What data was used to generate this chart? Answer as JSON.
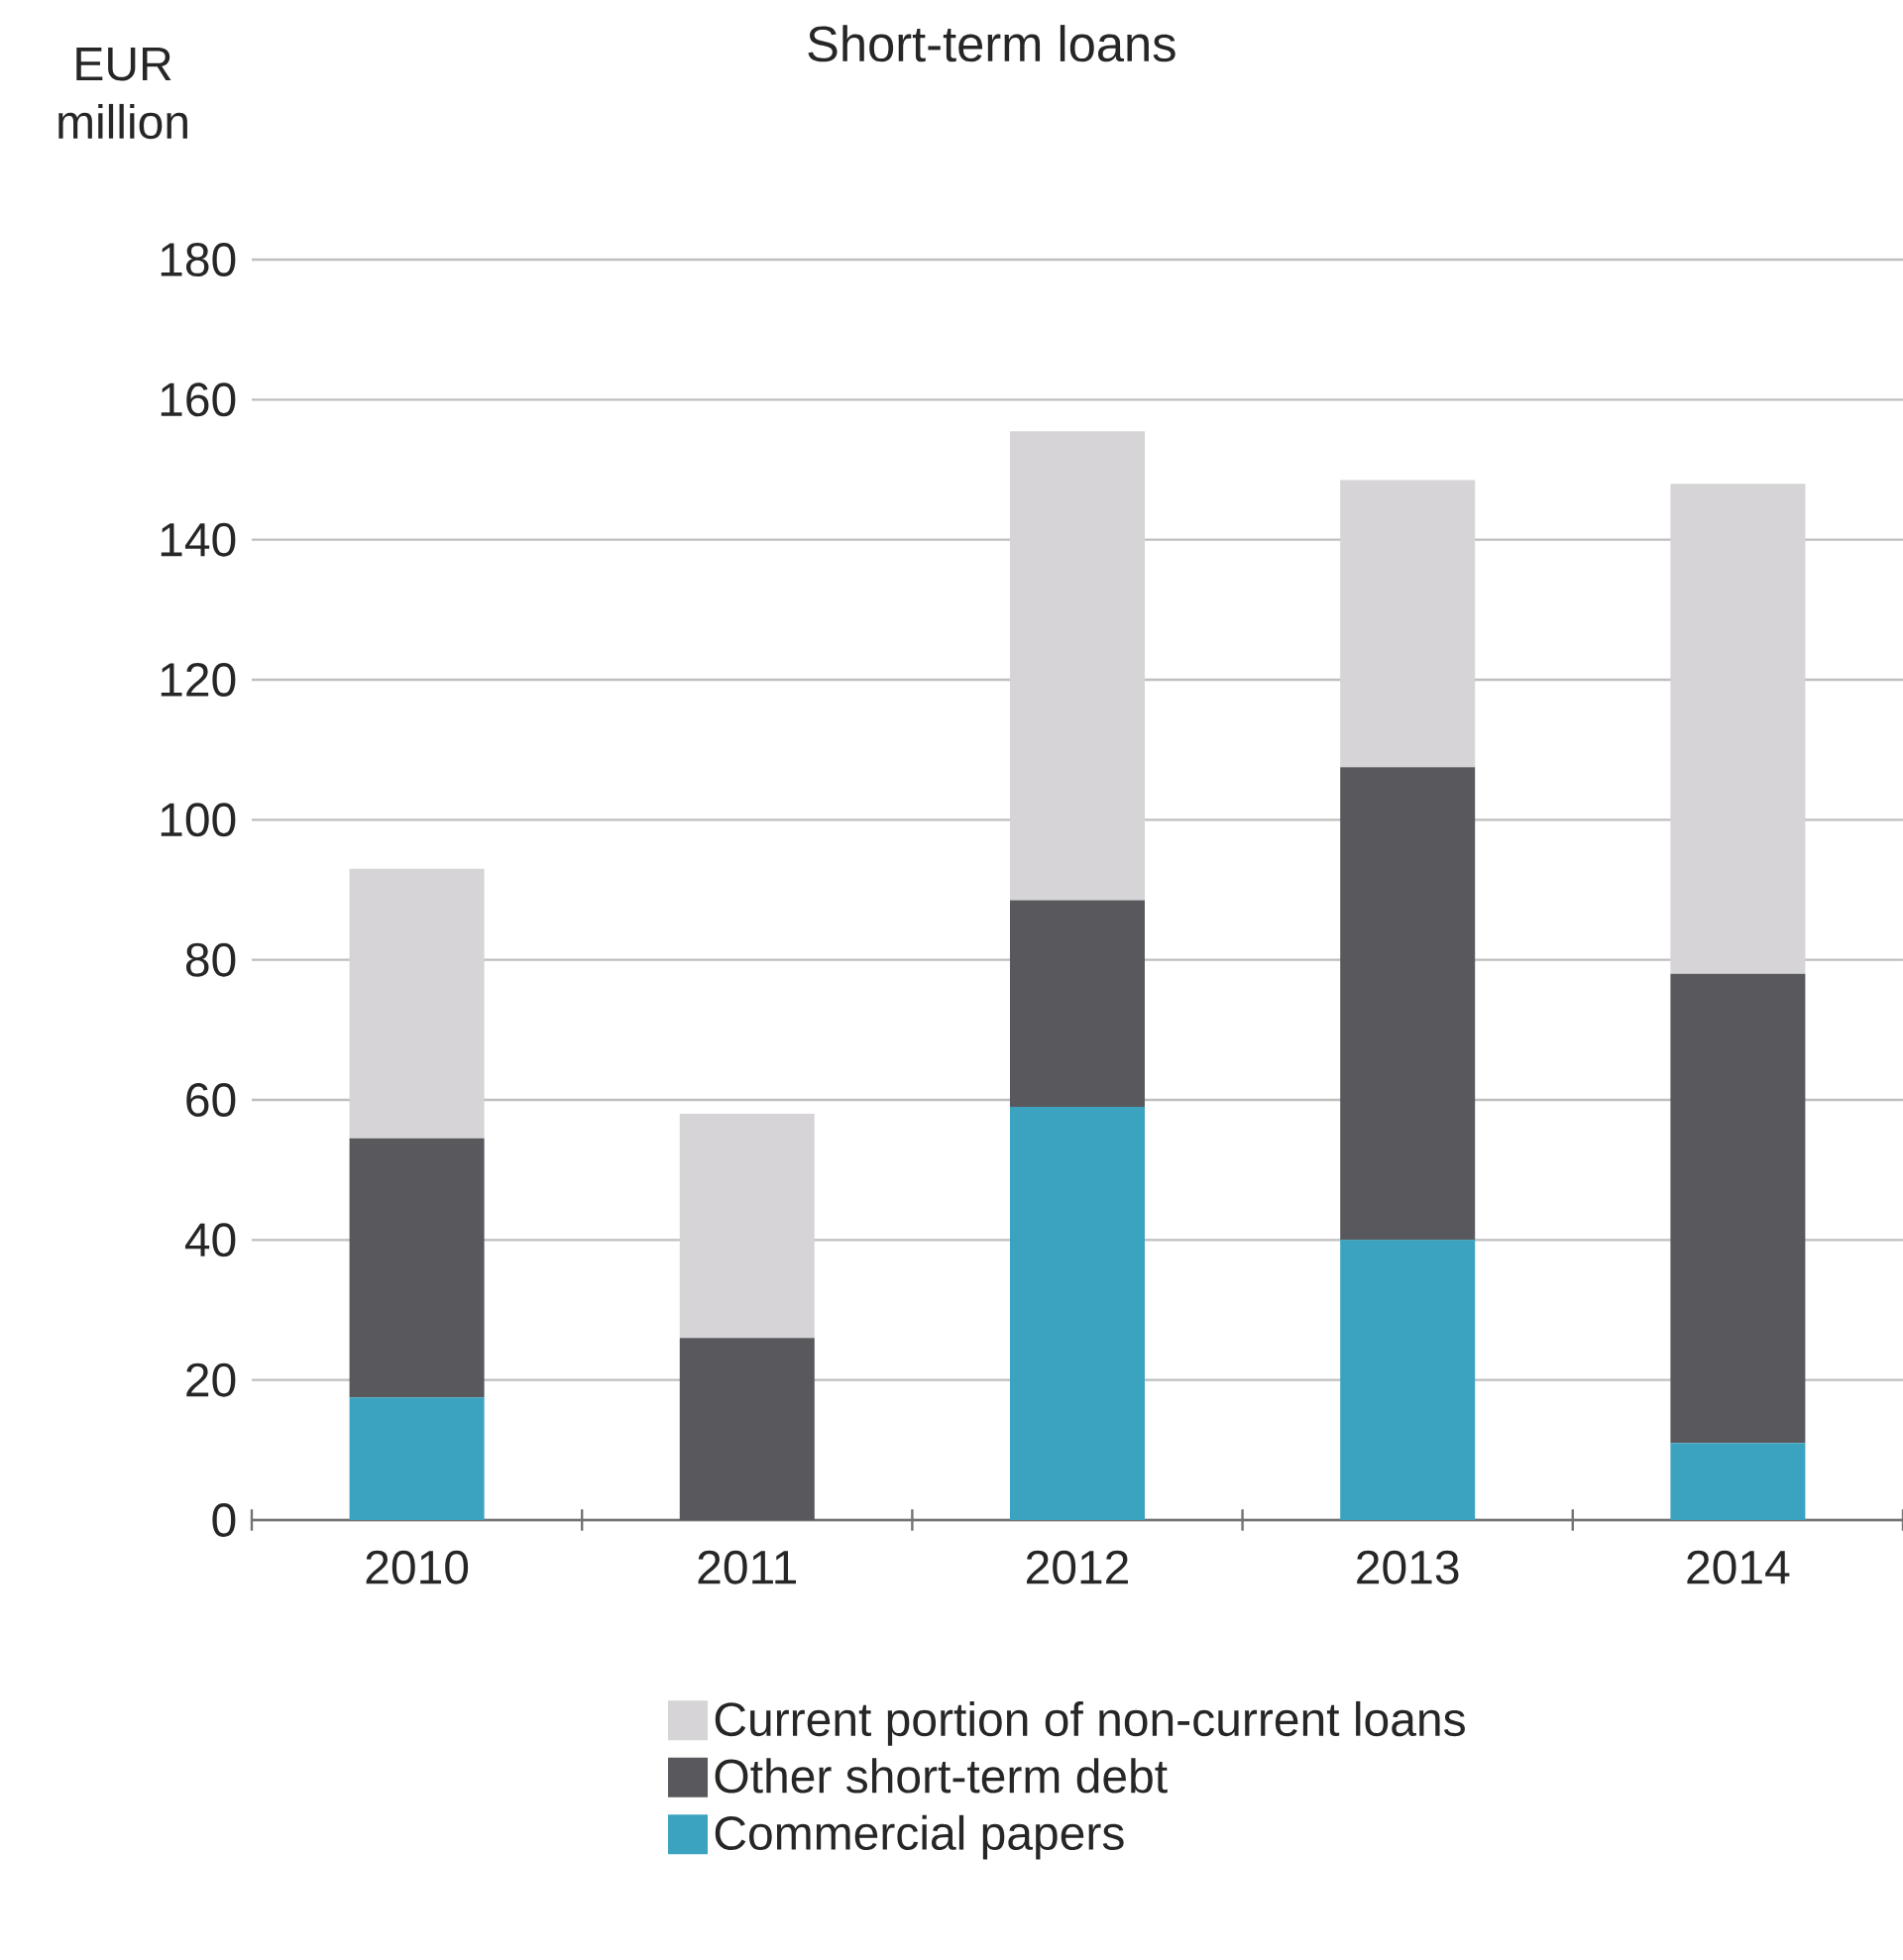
{
  "chart_data": {
    "type": "bar",
    "title": "Short-term loans",
    "ylabel": "EUR million",
    "stacked": true,
    "categories": [
      "2010",
      "2011",
      "2012",
      "2013",
      "2014"
    ],
    "series": [
      {
        "name": "Commercial papers",
        "color": "#3ba3c0",
        "values": [
          17.5,
          0,
          59,
          40,
          11
        ]
      },
      {
        "name": "Other short-term debt",
        "color": "#59585d",
        "values": [
          37,
          26,
          29.5,
          67.5,
          67
        ]
      },
      {
        "name": "Current portion of non-current loans",
        "color": "#d6d4d6",
        "values": [
          38.5,
          32,
          67,
          41,
          70
        ]
      }
    ],
    "ylim": [
      0,
      180
    ],
    "yticks": [
      0,
      20,
      40,
      60,
      80,
      100,
      120,
      140,
      160,
      180
    ],
    "grid": "y",
    "legend": "bottom"
  }
}
